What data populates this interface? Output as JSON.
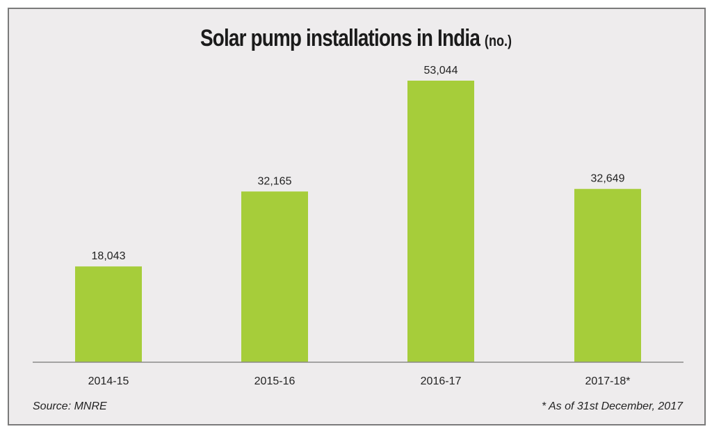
{
  "chart_data": {
    "type": "bar",
    "title": "Solar pump installations in India",
    "title_unit": "(no.)",
    "categories": [
      "2014-15",
      "2015-16",
      "2016-17",
      "2017-18*"
    ],
    "values": [
      18043,
      32165,
      53044,
      32649
    ],
    "value_labels": [
      "18,043",
      "32,165",
      "53,044",
      "32,649"
    ],
    "xlabel": "",
    "ylabel": "",
    "ylim": [
      0,
      53044
    ],
    "grid": false,
    "legend": "none",
    "bar_color": "#a6cd3a",
    "source": "Source: MNRE",
    "footnote": "* As of 31st December, 2017"
  }
}
